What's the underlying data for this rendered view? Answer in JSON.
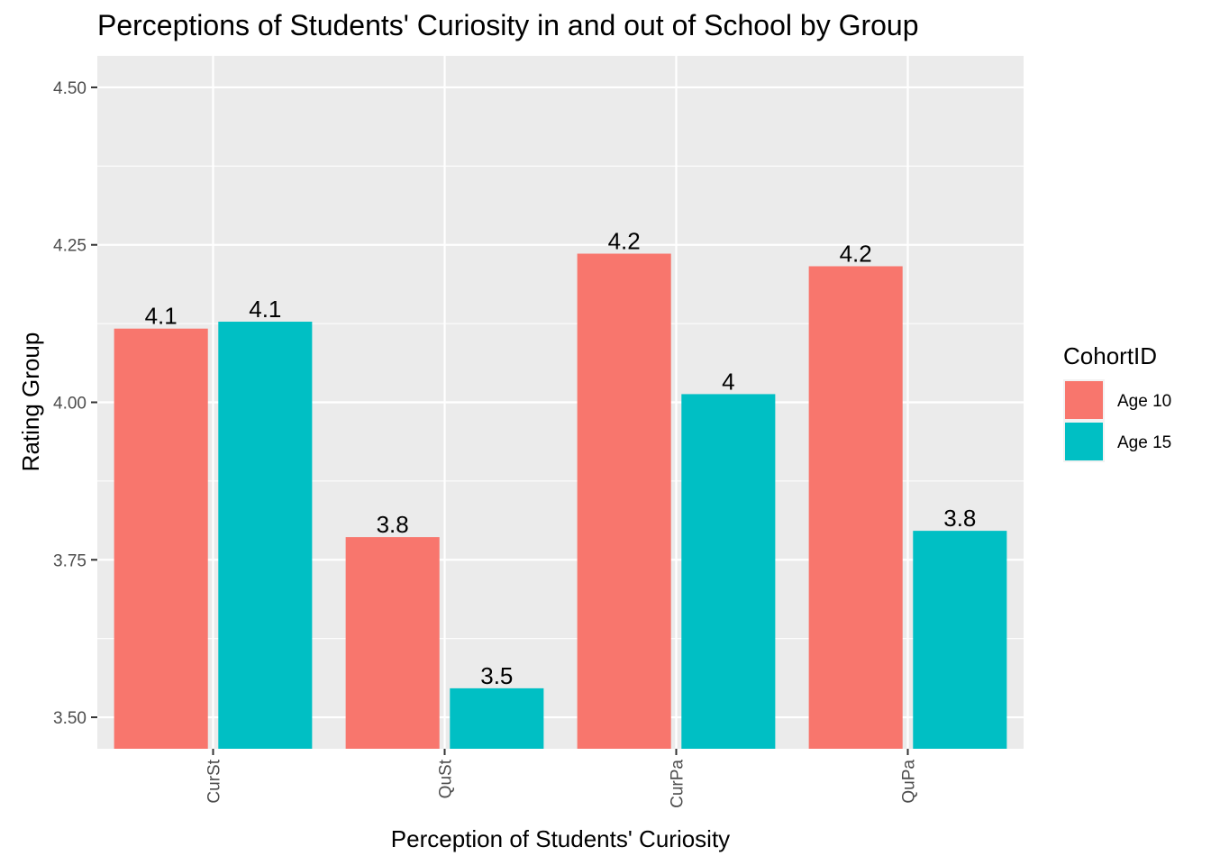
{
  "chart_data": {
    "type": "bar",
    "title": "Perceptions of Students' Curiosity in and out of School by Group",
    "xlabel": "Perception of Students' Curiosity",
    "ylabel": "Rating Group",
    "categories": [
      "CurSt",
      "QuSt",
      "CurPa",
      "QuPa"
    ],
    "series": [
      {
        "name": "Age 10",
        "color": "#F8766D",
        "values": [
          4.117,
          3.786,
          4.236,
          4.216
        ],
        "labels": [
          "4.1",
          "3.8",
          "4.2",
          "4.2"
        ]
      },
      {
        "name": "Age 15",
        "color": "#00BFC4",
        "values": [
          4.128,
          3.546,
          4.013,
          3.796
        ],
        "labels": [
          "4.1",
          "3.5",
          "4",
          "3.8"
        ]
      }
    ],
    "ylim": [
      3.45,
      4.55
    ],
    "yticks": [
      "3.50",
      "3.75",
      "4.00",
      "4.25",
      "4.50"
    ],
    "legend": {
      "title": "CohortID",
      "placement": "right"
    },
    "grid": true,
    "panel_color": "#EBEBEB"
  }
}
